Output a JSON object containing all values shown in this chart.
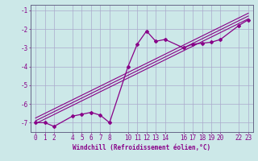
{
  "title": "",
  "xlabel": "Windchill (Refroidissement éolien,°C)",
  "ylabel": "",
  "bg_color": "#cce8e8",
  "grid_color": "#aaaacc",
  "line_color": "#880088",
  "xlim": [
    -0.5,
    23.5
  ],
  "ylim": [
    -7.5,
    -0.7
  ],
  "xticks": [
    0,
    1,
    2,
    4,
    5,
    6,
    7,
    8,
    10,
    11,
    12,
    13,
    14,
    16,
    17,
    18,
    19,
    20,
    22,
    23
  ],
  "yticks": [
    -7,
    -6,
    -5,
    -4,
    -3,
    -2,
    -1
  ],
  "data_x": [
    0,
    1,
    2,
    4,
    5,
    6,
    7,
    8,
    10,
    11,
    12,
    13,
    14,
    16,
    17,
    18,
    19,
    20,
    22,
    23
  ],
  "data_y": [
    -7.0,
    -7.0,
    -7.2,
    -6.65,
    -6.55,
    -6.45,
    -6.6,
    -7.0,
    -4.0,
    -2.8,
    -2.1,
    -2.65,
    -2.55,
    -3.0,
    -2.8,
    -2.75,
    -2.7,
    -2.55,
    -1.8,
    -1.5
  ],
  "line1_x": [
    0,
    23
  ],
  "line1_y": [
    -7.05,
    -1.45
  ],
  "line2_x": [
    0,
    23
  ],
  "line2_y": [
    -6.75,
    -1.15
  ],
  "line3_x": [
    0,
    23
  ],
  "line3_y": [
    -6.9,
    -1.3
  ],
  "xlabel_fontsize": 5.5,
  "tick_fontsize": 5.5
}
